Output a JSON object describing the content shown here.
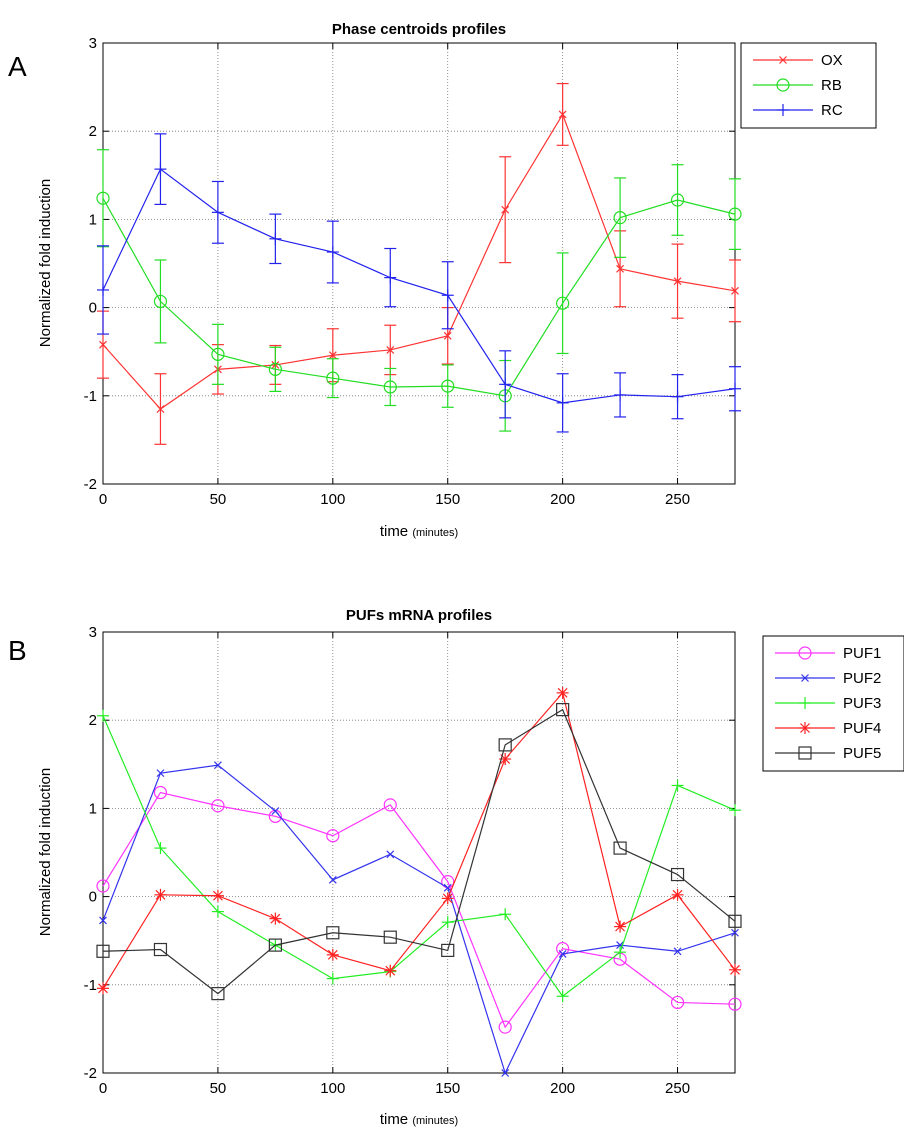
{
  "chart_data": [
    {
      "panel": "A",
      "type": "line",
      "title": "Phase centroids profiles",
      "xlabel": "time",
      "xlabel_unit": "(minutes)",
      "ylabel": "Normalized fold induction",
      "xlim": [
        0,
        275
      ],
      "ylim": [
        -2,
        3
      ],
      "xticks": [
        0,
        50,
        100,
        150,
        200,
        250
      ],
      "yticks": [
        -2,
        -1,
        0,
        1,
        2,
        3
      ],
      "grid": true,
      "legend_position": "outside-top-right",
      "x": [
        0,
        25,
        50,
        75,
        100,
        125,
        150,
        175,
        200,
        225,
        250,
        275
      ],
      "series": [
        {
          "name": "OX",
          "color": "#ff3333",
          "marker": "x",
          "values": [
            -0.42,
            -1.15,
            -0.7,
            -0.65,
            -0.54,
            -0.48,
            -0.32,
            1.11,
            2.19,
            0.44,
            0.3,
            0.19
          ],
          "errors": [
            0.38,
            0.4,
            0.28,
            0.22,
            0.3,
            0.28,
            0.32,
            0.6,
            0.35,
            0.43,
            0.42,
            0.35
          ]
        },
        {
          "name": "RB",
          "color": "#22dd22",
          "marker": "circle",
          "values": [
            1.24,
            0.07,
            -0.53,
            -0.7,
            -0.8,
            -0.9,
            -0.89,
            -1.0,
            0.05,
            1.02,
            1.22,
            1.06
          ],
          "errors": [
            0.55,
            0.47,
            0.34,
            0.25,
            0.22,
            0.21,
            0.24,
            0.4,
            0.57,
            0.45,
            0.4,
            0.4
          ]
        },
        {
          "name": "RC",
          "color": "#2222ee",
          "marker": "plus",
          "values": [
            0.2,
            1.57,
            1.08,
            0.78,
            0.63,
            0.34,
            0.14,
            -0.87,
            -1.08,
            -0.99,
            -1.01,
            -0.92
          ],
          "errors": [
            0.5,
            0.4,
            0.35,
            0.28,
            0.35,
            0.33,
            0.38,
            0.38,
            0.33,
            0.25,
            0.25,
            0.25
          ]
        }
      ]
    },
    {
      "panel": "B",
      "type": "line",
      "title": "PUFs mRNA profiles",
      "xlabel": "time",
      "xlabel_unit": "(minutes)",
      "ylabel": "Normalized fold induction",
      "xlim": [
        0,
        275
      ],
      "ylim": [
        -2,
        3
      ],
      "xticks": [
        0,
        50,
        100,
        150,
        200,
        250
      ],
      "yticks": [
        -2,
        -1,
        0,
        1,
        2,
        3
      ],
      "grid": true,
      "legend_position": "outside-top-right",
      "x": [
        0,
        25,
        50,
        75,
        100,
        125,
        150,
        175,
        200,
        225,
        250,
        275
      ],
      "series": [
        {
          "name": "PUF1",
          "color": "#ff33ff",
          "marker": "circle",
          "values": [
            0.12,
            1.18,
            1.03,
            0.91,
            0.69,
            1.04,
            0.17,
            -1.48,
            -0.59,
            -0.71,
            -1.2,
            -1.22
          ]
        },
        {
          "name": "PUF2",
          "color": "#3333ee",
          "marker": "x",
          "values": [
            -0.27,
            1.4,
            1.49,
            0.97,
            0.19,
            0.48,
            0.1,
            -2.0,
            -0.65,
            -0.55,
            -0.62,
            -0.41
          ]
        },
        {
          "name": "PUF3",
          "color": "#22ee22",
          "marker": "plus",
          "values": [
            2.05,
            0.55,
            -0.17,
            -0.55,
            -0.93,
            -0.85,
            -0.29,
            -0.2,
            -1.13,
            -0.63,
            1.26,
            0.98
          ]
        },
        {
          "name": "PUF4",
          "color": "#ff2222",
          "marker": "star",
          "values": [
            -1.04,
            0.02,
            0.01,
            -0.25,
            -0.66,
            -0.84,
            -0.02,
            1.56,
            2.31,
            -0.34,
            0.02,
            -0.83
          ]
        },
        {
          "name": "PUF5",
          "color": "#333333",
          "marker": "square",
          "values": [
            -0.62,
            -0.6,
            -1.1,
            -0.55,
            -0.41,
            -0.46,
            -0.61,
            1.72,
            2.12,
            0.55,
            0.25,
            -0.28
          ]
        }
      ]
    }
  ]
}
